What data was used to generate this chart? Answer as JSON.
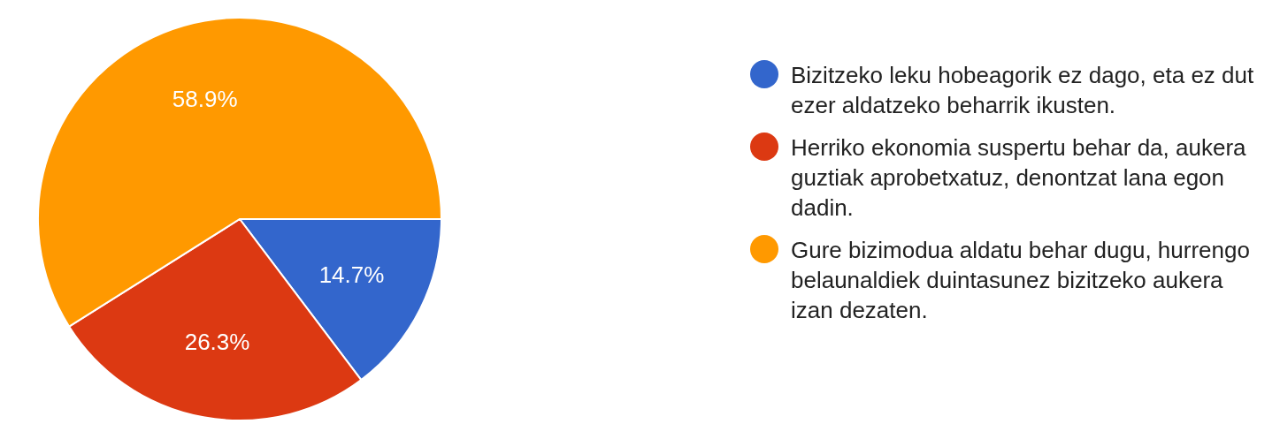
{
  "chart_data": {
    "type": "pie",
    "categories": [
      "Bizitzeko leku hobeagorik ez dago, eta ez dut ezer aldatzeko beharrik ikusten.",
      "Herriko ekonomia suspertu behar da, aukera guztiak aprobetxatuz, denontzat lana egon dadin.",
      "Gure bizimodua aldatu behar dugu, hurrengo belaunaldiek duintasunez bizitzeko aukera izan dezaten."
    ],
    "values": [
      14.7,
      26.3,
      58.9
    ],
    "colors": [
      "#3366cc",
      "#dc3912",
      "#ff9900"
    ],
    "value_labels": [
      "14.7%",
      "26.3%",
      "58.9%"
    ],
    "legend": "right"
  }
}
